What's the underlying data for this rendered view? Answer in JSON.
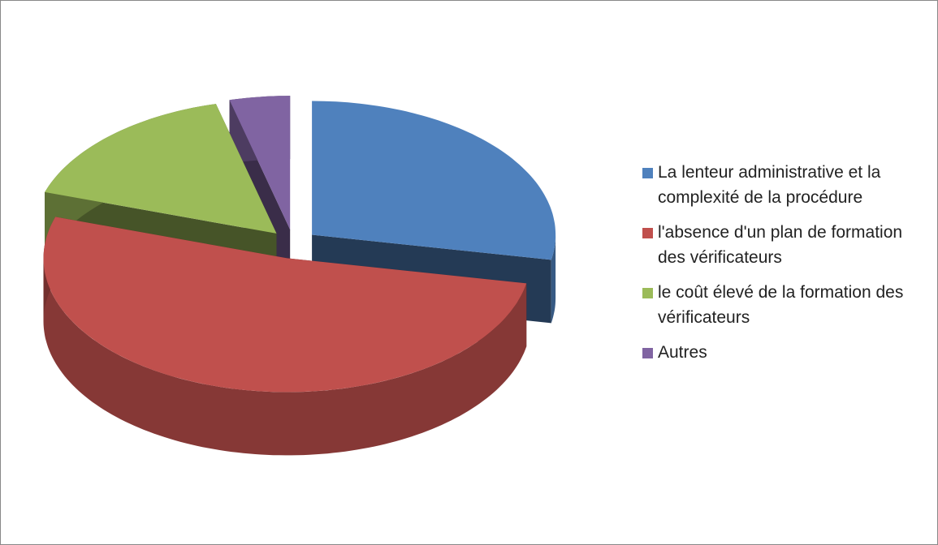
{
  "chart_data": {
    "type": "pie",
    "categories": [
      "La lenteur administrative et la complexité de la procédure",
      "l'absence d'un plan de formation des vérificateurs",
      "le coût élevé de la formation des vérificateurs",
      "Autres"
    ],
    "values": [
      28,
      52,
      16,
      4
    ],
    "colors": [
      "#4f81bd",
      "#c0504d",
      "#9bbb59",
      "#8064a2"
    ],
    "legend": "right"
  }
}
